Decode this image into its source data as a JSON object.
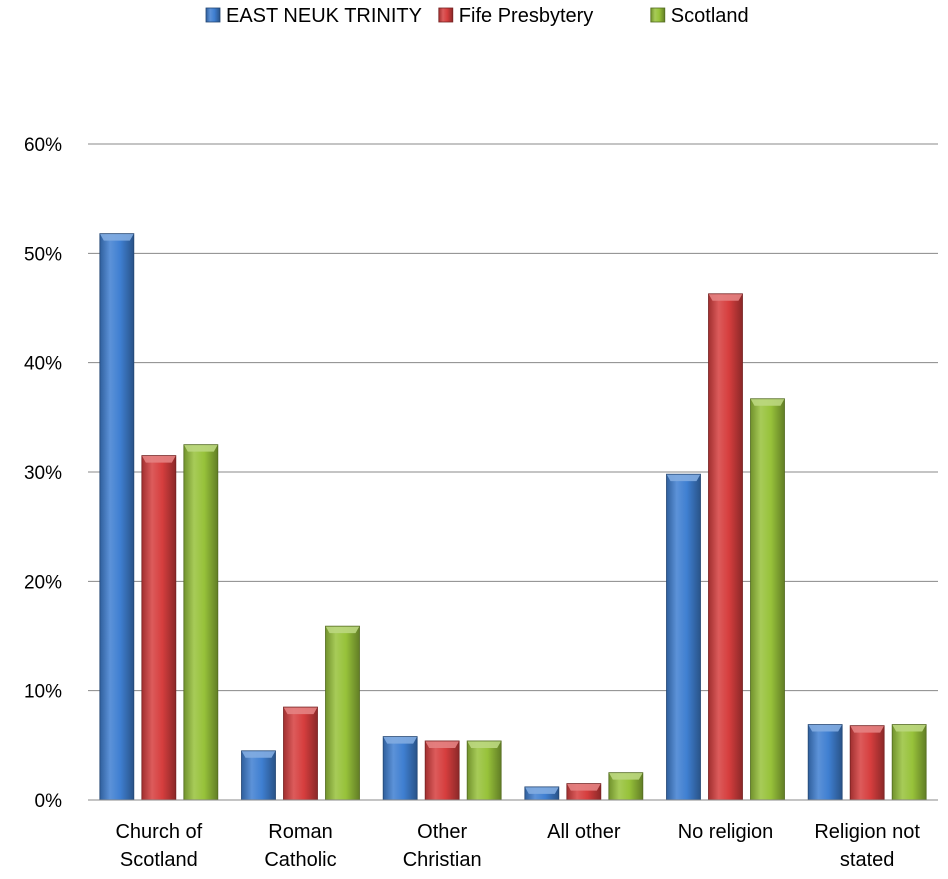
{
  "chart_data": {
    "type": "bar",
    "title": "",
    "xlabel": "",
    "ylabel": "",
    "categories": [
      [
        "Church of",
        "Scotland"
      ],
      [
        "Roman",
        "Catholic"
      ],
      [
        "Other",
        "Christian"
      ],
      [
        "All other"
      ],
      [
        "No religion"
      ],
      [
        "Religion not",
        "stated"
      ]
    ],
    "series": [
      {
        "name": "EAST NEUK TRINITY",
        "color": "#3F7FD1",
        "values": [
          51.8,
          4.5,
          5.8,
          1.2,
          29.8,
          6.9
        ]
      },
      {
        "name": "Fife Presbytery",
        "color": "#D63E3E",
        "values": [
          31.5,
          8.5,
          5.4,
          1.5,
          46.3,
          6.8
        ]
      },
      {
        "name": "Scotland",
        "color": "#97C23A",
        "values": [
          32.5,
          15.9,
          5.4,
          2.5,
          36.7,
          6.9
        ]
      }
    ],
    "ylim": [
      0,
      60
    ],
    "yticks": [
      0,
      10,
      20,
      30,
      40,
      50,
      60
    ],
    "ytick_labels": [
      "0%",
      "10%",
      "20%",
      "30%",
      "40%",
      "50%",
      "60%"
    ],
    "grid": true,
    "legend_position": "top-center"
  }
}
